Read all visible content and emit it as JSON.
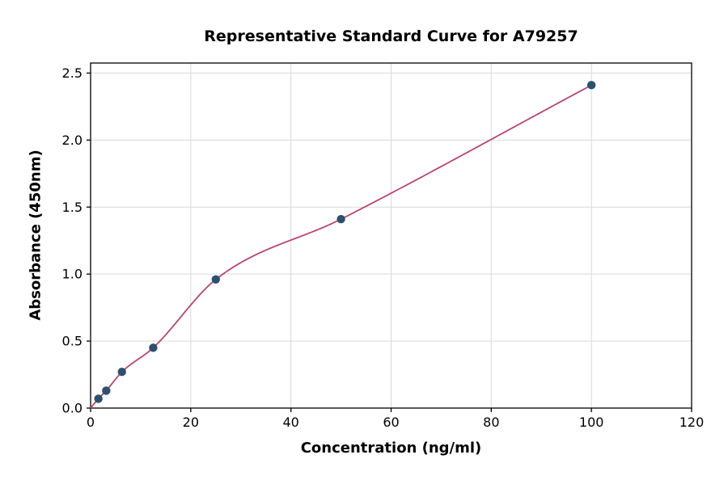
{
  "chart_data": {
    "type": "scatter",
    "title": "Representative Standard Curve for A79257",
    "xlabel": "Concentration (ng/ml)",
    "ylabel": "Absorbance (450nm)",
    "xlim": [
      0,
      120
    ],
    "ylim": [
      0,
      2.575
    ],
    "xticks": [
      0,
      20,
      40,
      60,
      80,
      100,
      120
    ],
    "xtick_labels": [
      "0",
      "20",
      "40",
      "60",
      "80",
      "100",
      "120"
    ],
    "yticks": [
      0,
      0.5,
      1.0,
      1.5,
      2.0,
      2.5
    ],
    "ytick_labels": [
      "0.0",
      "0.5",
      "1.0",
      "1.5",
      "2.0",
      "2.5"
    ],
    "grid": true,
    "legend": "none",
    "points": [
      {
        "x": 1.56,
        "y": 0.07
      },
      {
        "x": 3.12,
        "y": 0.13
      },
      {
        "x": 6.25,
        "y": 0.27
      },
      {
        "x": 12.5,
        "y": 0.45
      },
      {
        "x": 25,
        "y": 0.96
      },
      {
        "x": 50,
        "y": 1.41
      },
      {
        "x": 100,
        "y": 2.41
      }
    ],
    "curve_points": [
      {
        "x": 0,
        "y": 0.0
      },
      {
        "x": 1.56,
        "y": 0.07
      },
      {
        "x": 3.12,
        "y": 0.13
      },
      {
        "x": 6.25,
        "y": 0.27
      },
      {
        "x": 12.5,
        "y": 0.45
      },
      {
        "x": 25,
        "y": 0.96
      },
      {
        "x": 50,
        "y": 1.41
      },
      {
        "x": 100,
        "y": 2.41
      }
    ],
    "colors": {
      "point": "#2e506e",
      "curve": "#b5476b",
      "grid": "#d9d9d9",
      "axis": "#000000",
      "background": "#ffffff"
    }
  }
}
